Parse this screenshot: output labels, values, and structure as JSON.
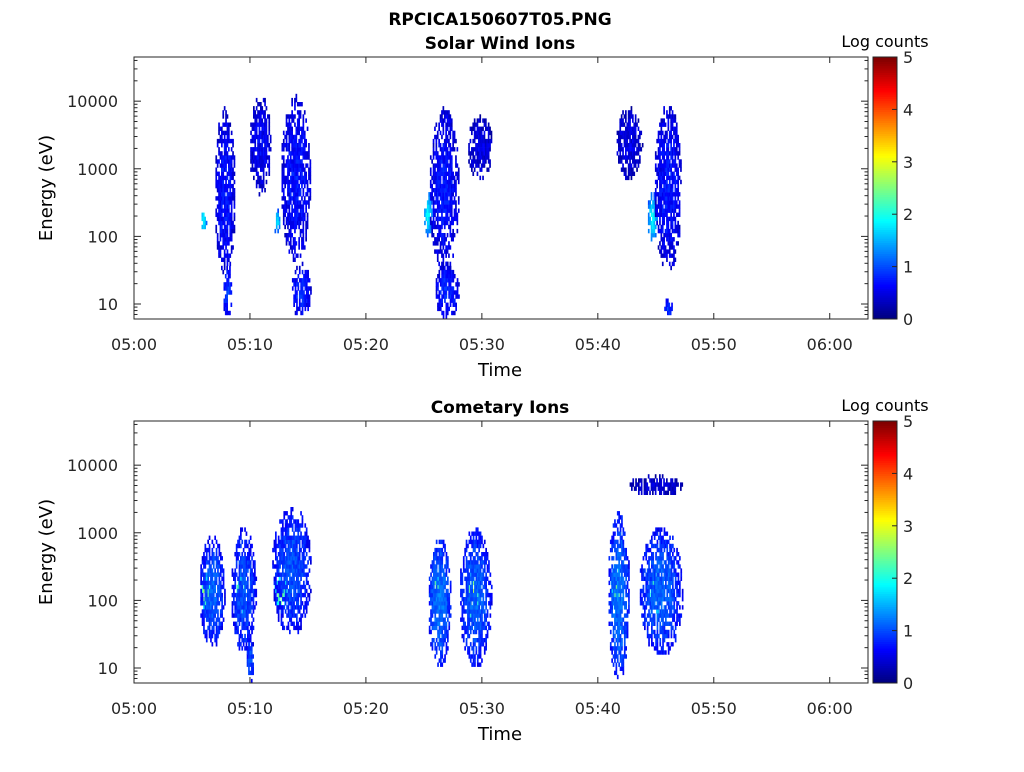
{
  "figure": {
    "title": "RPCICA150607T05.PNG"
  },
  "chart_data": [
    {
      "type": "heatmap",
      "title": "Solar Wind Ions",
      "xlabel": "Time",
      "ylabel": "Energy (eV)",
      "x_tick_labels": [
        "05:00",
        "05:10",
        "05:20",
        "05:30",
        "05:40",
        "05:50",
        "06:00"
      ],
      "x_ticks_minutes": [
        0,
        10,
        20,
        30,
        40,
        50,
        60
      ],
      "xlim_minutes": [
        0,
        63.3
      ],
      "y_scale": "log",
      "y_tick_labels": [
        "10",
        "100",
        "1000",
        "10000"
      ],
      "y_ticks": [
        10,
        100,
        1000,
        10000
      ],
      "ylim": [
        6,
        45000
      ],
      "colorbar": {
        "label": "Log counts",
        "range": [
          0,
          5
        ],
        "tick_labels": [
          "0",
          "1",
          "2",
          "3",
          "4",
          "5"
        ],
        "colormap": "jet"
      },
      "grid": false,
      "blobs": [
        {
          "t": [
            5.7,
            6.2
          ],
          "e": [
            110,
            260
          ],
          "v": 1.9
        },
        {
          "t": [
            6.9,
            8.7
          ],
          "e": [
            25,
            8000
          ],
          "v": 0.7
        },
        {
          "t": [
            7.6,
            8.4
          ],
          "e": [
            6,
            40
          ],
          "v": 0.9
        },
        {
          "t": [
            9.9,
            11.8
          ],
          "e": [
            400,
            12000
          ],
          "v": 0.6
        },
        {
          "t": [
            12.0,
            12.6
          ],
          "e": [
            110,
            260
          ],
          "v": 1.7
        },
        {
          "t": [
            12.6,
            15.2
          ],
          "e": [
            40,
            12000
          ],
          "v": 0.7
        },
        {
          "t": [
            13.5,
            15.2
          ],
          "e": [
            6,
            40
          ],
          "v": 0.8
        },
        {
          "t": [
            24.9,
            25.7
          ],
          "e": [
            100,
            450
          ],
          "v": 1.8
        },
        {
          "t": [
            25.4,
            28.0
          ],
          "e": [
            30,
            8000
          ],
          "v": 0.7
        },
        {
          "t": [
            25.9,
            28.0
          ],
          "e": [
            6,
            40
          ],
          "v": 0.8
        },
        {
          "t": [
            28.7,
            30.9
          ],
          "e": [
            700,
            6000
          ],
          "v": 0.5
        },
        {
          "t": [
            41.5,
            43.8
          ],
          "e": [
            700,
            8000
          ],
          "v": 0.5
        },
        {
          "t": [
            44.2,
            45.1
          ],
          "e": [
            80,
            450
          ],
          "v": 1.8
        },
        {
          "t": [
            44.8,
            47.2
          ],
          "e": [
            30,
            9000
          ],
          "v": 0.7
        },
        {
          "t": [
            45.6,
            46.4
          ],
          "e": [
            6,
            12
          ],
          "v": 0.9
        }
      ]
    },
    {
      "type": "heatmap",
      "title": "Cometary Ions",
      "xlabel": "Time",
      "ylabel": "Energy (eV)",
      "x_tick_labels": [
        "05:00",
        "05:10",
        "05:20",
        "05:30",
        "05:40",
        "05:50",
        "06:00"
      ],
      "x_ticks_minutes": [
        0,
        10,
        20,
        30,
        40,
        50,
        60
      ],
      "xlim_minutes": [
        0,
        63.3
      ],
      "y_scale": "log",
      "y_tick_labels": [
        "10",
        "100",
        "1000",
        "10000"
      ],
      "y_ticks": [
        10,
        100,
        1000,
        10000
      ],
      "ylim": [
        6,
        45000
      ],
      "colorbar": {
        "label": "Log counts",
        "range": [
          0,
          5
        ],
        "tick_labels": [
          "0",
          "1",
          "2",
          "3",
          "4",
          "5"
        ],
        "colormap": "jet"
      },
      "grid": false,
      "blobs": [
        {
          "t": [
            5.6,
            6.6
          ],
          "e": [
            70,
            250
          ],
          "v": 2.7
        },
        {
          "t": [
            5.6,
            7.8
          ],
          "e": [
            20,
            900
          ],
          "v": 1.1
        },
        {
          "t": [
            8.6,
            9.7
          ],
          "e": [
            60,
            250
          ],
          "v": 2.6
        },
        {
          "t": [
            8.3,
            10.5
          ],
          "e": [
            15,
            1200
          ],
          "v": 1.0
        },
        {
          "t": [
            9.6,
            10.3
          ],
          "e": [
            6,
            30
          ],
          "v": 1.0
        },
        {
          "t": [
            12.0,
            13.2
          ],
          "e": [
            70,
            250
          ],
          "v": 2.5
        },
        {
          "t": [
            11.8,
            15.3
          ],
          "e": [
            30,
            2500
          ],
          "v": 1.0
        },
        {
          "t": [
            25.4,
            26.4
          ],
          "e": [
            70,
            250
          ],
          "v": 2.6
        },
        {
          "t": [
            25.3,
            27.3
          ],
          "e": [
            10,
            900
          ],
          "v": 1.2
        },
        {
          "t": [
            28.5,
            29.8
          ],
          "e": [
            50,
            250
          ],
          "v": 2.8
        },
        {
          "t": [
            28.0,
            30.8
          ],
          "e": [
            10,
            1200
          ],
          "v": 1.1
        },
        {
          "t": [
            41.0,
            42.1
          ],
          "e": [
            60,
            350
          ],
          "v": 2.5
        },
        {
          "t": [
            40.8,
            42.7
          ],
          "e": [
            6,
            2000
          ],
          "v": 1.2
        },
        {
          "t": [
            44.3,
            45.4
          ],
          "e": [
            60,
            250
          ],
          "v": 2.5
        },
        {
          "t": [
            43.5,
            47.3
          ],
          "e": [
            15,
            1200
          ],
          "v": 1.1
        },
        {
          "t": [
            42.5,
            47.3
          ],
          "e": [
            3500,
            7000
          ],
          "v": 0.4
        }
      ]
    }
  ]
}
